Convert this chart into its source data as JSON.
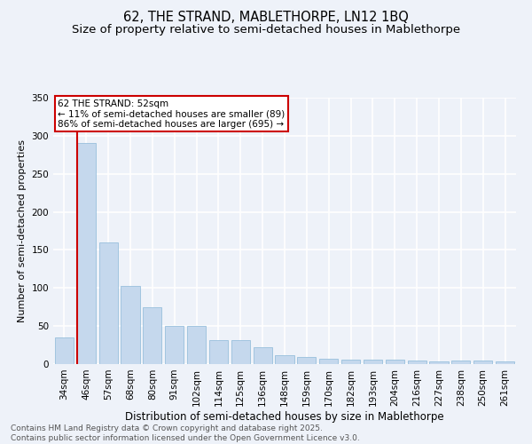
{
  "title1": "62, THE STRAND, MABLETHORPE, LN12 1BQ",
  "title2": "Size of property relative to semi-detached houses in Mablethorpe",
  "xlabel": "Distribution of semi-detached houses by size in Mablethorpe",
  "ylabel": "Number of semi-detached properties",
  "categories": [
    "34sqm",
    "46sqm",
    "57sqm",
    "68sqm",
    "80sqm",
    "91sqm",
    "102sqm",
    "114sqm",
    "125sqm",
    "136sqm",
    "148sqm",
    "159sqm",
    "170sqm",
    "182sqm",
    "193sqm",
    "204sqm",
    "216sqm",
    "227sqm",
    "238sqm",
    "250sqm",
    "261sqm"
  ],
  "values": [
    35,
    290,
    160,
    103,
    75,
    50,
    50,
    32,
    32,
    22,
    12,
    9,
    7,
    6,
    6,
    6,
    5,
    3,
    5,
    5,
    3
  ],
  "bar_color": "#c5d8ed",
  "bar_edge_color": "#8ab8d8",
  "highlight_bar_index": 1,
  "highlight_line_color": "#cc0000",
  "annotation_text": "62 THE STRAND: 52sqm\n← 11% of semi-detached houses are smaller (89)\n86% of semi-detached houses are larger (695) →",
  "annotation_box_color": "#ffffff",
  "annotation_box_edge": "#cc0000",
  "footer_line1": "Contains HM Land Registry data © Crown copyright and database right 2025.",
  "footer_line2": "Contains public sector information licensed under the Open Government Licence v3.0.",
  "background_color": "#eef2f9",
  "grid_color": "#ffffff",
  "ylim": [
    0,
    350
  ],
  "yticks": [
    0,
    50,
    100,
    150,
    200,
    250,
    300,
    350
  ],
  "title1_fontsize": 10.5,
  "title2_fontsize": 9.5,
  "xlabel_fontsize": 8.5,
  "ylabel_fontsize": 8,
  "tick_fontsize": 7.5,
  "annotation_fontsize": 7.5,
  "footer_fontsize": 6.5
}
